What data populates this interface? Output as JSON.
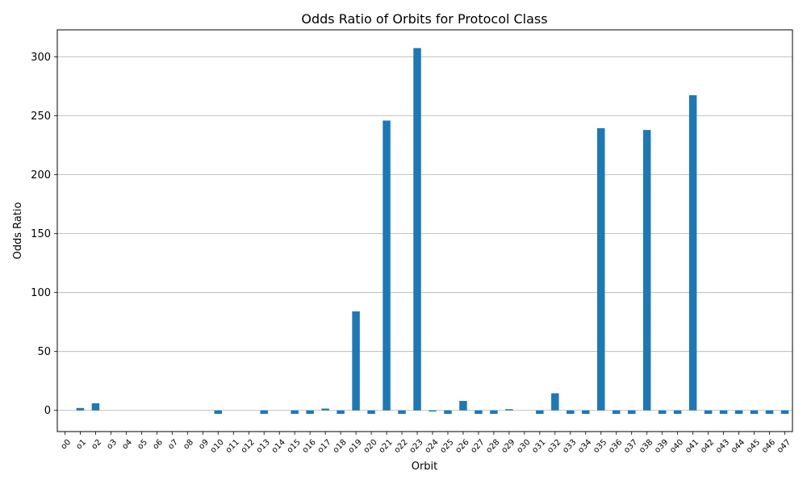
{
  "chart_data": {
    "type": "bar",
    "title": "Odds Ratio of Orbits for Protocol Class",
    "xlabel": "Orbit",
    "ylabel": "Odds Ratio",
    "ylim": [
      -18,
      323
    ],
    "yticks": [
      0,
      50,
      100,
      150,
      200,
      250,
      300
    ],
    "grid": "y",
    "bar_color": "#1f77b4",
    "categories": [
      "o0",
      "o1",
      "o2",
      "o3",
      "o4",
      "o5",
      "o6",
      "o7",
      "o8",
      "o9",
      "o10",
      "o11",
      "o12",
      "o13",
      "o14",
      "o15",
      "o16",
      "o17",
      "o18",
      "o19",
      "o20",
      "o21",
      "o22",
      "o23",
      "o24",
      "o25",
      "o26",
      "o27",
      "o28",
      "o29",
      "o30",
      "o31",
      "o32",
      "o33",
      "o34",
      "o35",
      "o36",
      "o37",
      "o38",
      "o39",
      "o40",
      "o41",
      "o42",
      "o43",
      "o44",
      "o45",
      "o46",
      "o47"
    ],
    "values": [
      0,
      2,
      6,
      0,
      0,
      0,
      0,
      0,
      0,
      0,
      -3,
      0,
      0,
      -3,
      0,
      -3,
      -3,
      1.5,
      -3,
      84,
      -3,
      246,
      -3,
      307.5,
      -1,
      -3,
      8,
      -3,
      -3,
      1,
      0,
      -3,
      14.5,
      -3,
      -3,
      239.5,
      -3,
      -3,
      238,
      -3,
      -3,
      267.5,
      -3,
      -3,
      -3,
      -3,
      -3,
      -3
    ]
  }
}
